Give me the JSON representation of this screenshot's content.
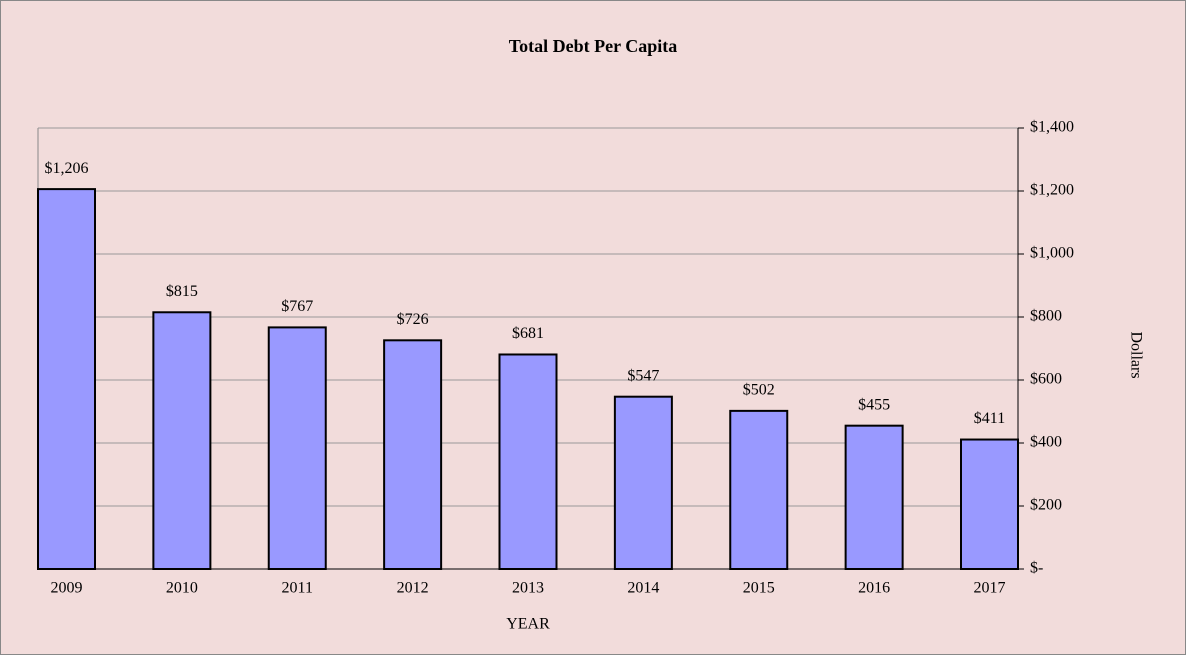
{
  "chart_data": {
    "type": "bar",
    "title": "Total Debt Per Capita",
    "categories": [
      "2009",
      "2010",
      "2011",
      "2012",
      "2013",
      "2014",
      "2015",
      "2016",
      "2017"
    ],
    "values": [
      1206,
      815,
      767,
      726,
      681,
      547,
      502,
      455,
      411
    ],
    "value_labels": [
      "$1,206",
      "$815",
      "$767",
      "$726",
      "$681",
      "$547",
      "$502",
      "$455",
      "$411"
    ],
    "color": "#9999ff",
    "xlabel": "YEAR",
    "ylabel": "Dollars",
    "ylim": [
      0,
      1400
    ],
    "yticks": [
      {
        "value": 0,
        "label": "$-"
      },
      {
        "value": 200,
        "label": "$200"
      },
      {
        "value": 400,
        "label": "$400"
      },
      {
        "value": 600,
        "label": "$600"
      },
      {
        "value": 800,
        "label": "$800"
      },
      {
        "value": 1000,
        "label": "$1,000"
      },
      {
        "value": 1200,
        "label": "$1,200"
      },
      {
        "value": 1400,
        "label": "$1,400"
      }
    ],
    "grid": true
  }
}
